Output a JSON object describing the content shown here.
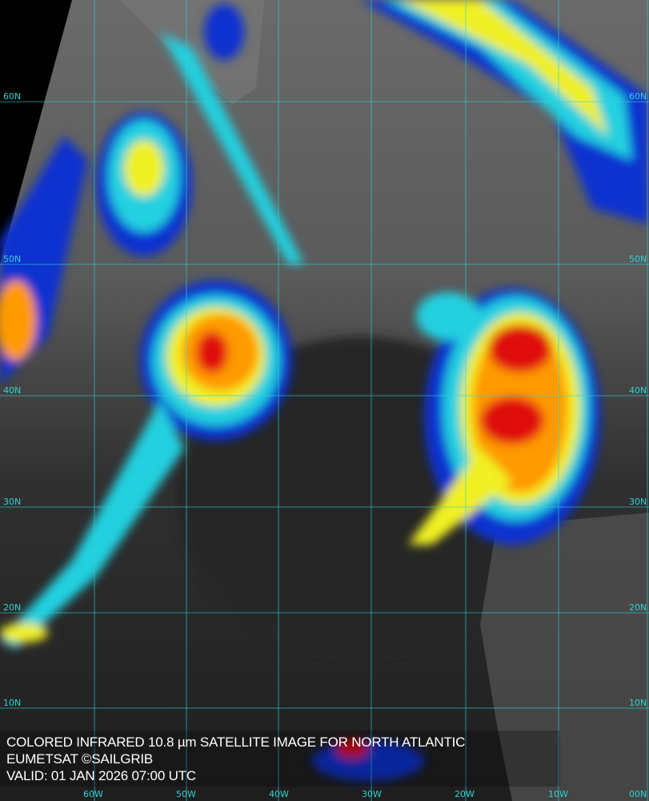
{
  "caption": {
    "title": "COLORED INFRARED 10.8 µm SATELLITE IMAGE FOR NORTH ATLANTIC",
    "credit": "EUMETSAT ©SAILGRIB",
    "valid": "VALID:  01 JAN 2026 07:00 UTC"
  },
  "grid": {
    "latitudes": [
      "60N",
      "50N",
      "40N",
      "30N",
      "20N",
      "10N"
    ],
    "longitudes": [
      "60W",
      "50W",
      "40W",
      "30W",
      "20W",
      "10W",
      "00N"
    ],
    "line_color": "#2fd3d3"
  },
  "palette": {
    "cold_top_red": "#e01010",
    "orange": "#ff9a00",
    "yellow": "#f0f020",
    "cyan": "#20d0e0",
    "blue": "#1030d0",
    "clear_sky": "#303030"
  }
}
